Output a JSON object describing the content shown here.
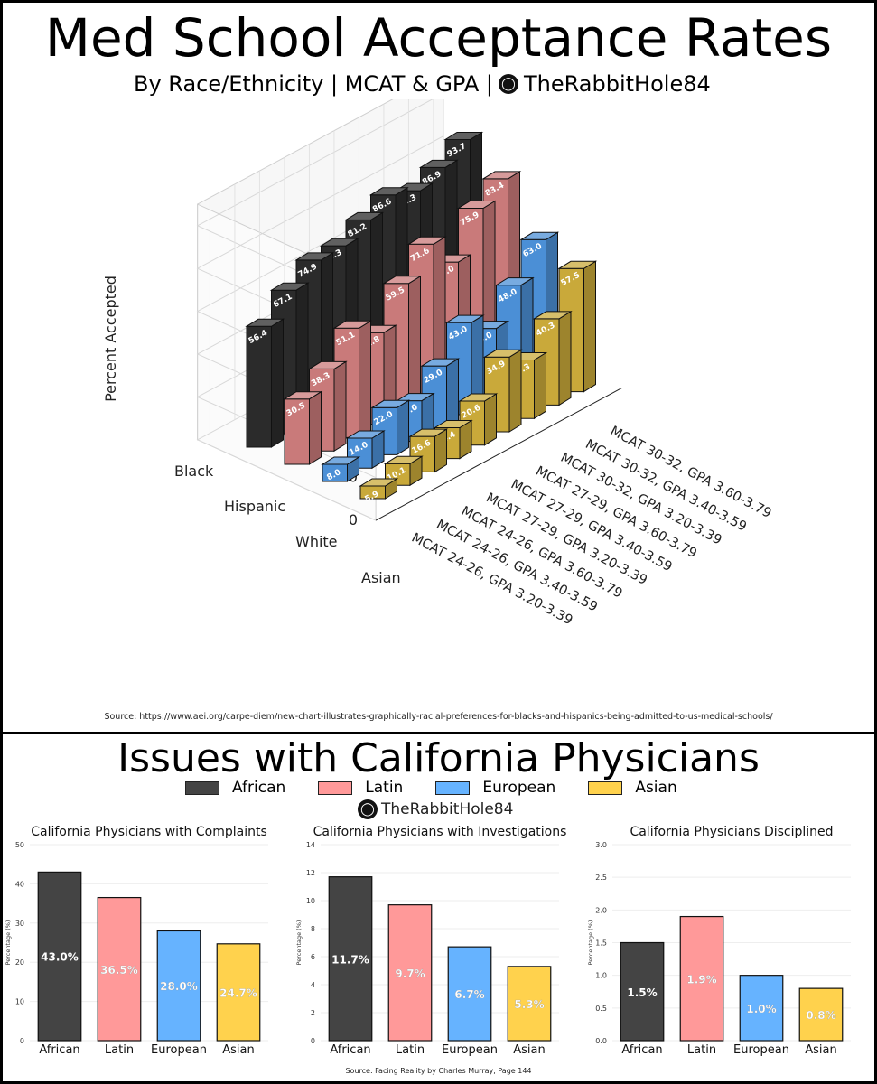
{
  "top": {
    "title": "Med School Acceptance Rates",
    "subtitle": "By Race/Ethnicity | MCAT & GPA |",
    "brand": "TheRabbitHole84",
    "source": "Source: https://www.aei.org/carpe-diem/new-chart-illustrates-graphically-racial-preferences-for-blacks-and-hispanics-being-admitted-to-us-medical-schools/"
  },
  "bottom": {
    "title": "Issues with California Physicians",
    "brand": "TheRabbitHole84",
    "source": "Source: Facing Reality by Charles Murray, Page 144",
    "legend": [
      {
        "label": "African",
        "color": "#444444"
      },
      {
        "label": "Latin",
        "color": "#ff9999"
      },
      {
        "label": "European",
        "color": "#66b3ff"
      },
      {
        "label": "Asian",
        "color": "#ffd24d"
      }
    ]
  },
  "chart_data": [
    {
      "type": "bar",
      "variant": "3d",
      "title": "Med School Acceptance Rates",
      "zlabel": "Percent Accepted",
      "zlim": [
        0,
        100
      ],
      "z_ticks": [
        "0",
        "20",
        "40",
        "60",
        "80",
        "100"
      ],
      "groups": [
        "Black",
        "Hispanic",
        "White",
        "Asian"
      ],
      "group_colors": {
        "Black": "#2b2b2b",
        "Hispanic": "#c97a7a",
        "White": "#4b8fd6",
        "Asian": "#c9a93a"
      },
      "categories": [
        "MCAT 24-26, GPA 3.20-3.39",
        "MCAT 24-26, GPA 3.40-3.59",
        "MCAT 24-26, GPA 3.60-3.79",
        "MCAT 27-29, GPA 3.20-3.39",
        "MCAT 27-29, GPA 3.40-3.59",
        "MCAT 27-29, GPA 3.60-3.79",
        "MCAT 30-32, GPA 3.20-3.39",
        "MCAT 30-32, GPA 3.40-3.59",
        "MCAT 30-32, GPA 3.60-3.79"
      ],
      "series": [
        {
          "name": "Black",
          "values": [
            56.4,
            67.1,
            74.9,
            75.3,
            81.2,
            86.6,
            82.3,
            86.9,
            93.7
          ]
        },
        {
          "name": "Hispanic",
          "values": [
            30.5,
            38.3,
            51.1,
            42.8,
            59.5,
            71.6,
            57.0,
            75.9,
            83.4
          ]
        },
        {
          "name": "White",
          "values": [
            8.0,
            14.0,
            22.0,
            19.0,
            29.0,
            43.0,
            34.0,
            48.0,
            63.0
          ]
        },
        {
          "name": "Asian",
          "values": [
            5.9,
            10.1,
            16.6,
            14.4,
            20.6,
            34.9,
            27.3,
            40.3,
            57.5
          ]
        }
      ],
      "grid": true
    },
    {
      "type": "bar",
      "title": "California Physicians with Complaints",
      "ylabel": "Percentage (%)",
      "categories": [
        "African",
        "Latin",
        "European",
        "Asian"
      ],
      "values": [
        43.0,
        36.5,
        28.0,
        24.7
      ],
      "labels": [
        "43.0%",
        "36.5%",
        "28.0%",
        "24.7%"
      ],
      "ylim": [
        0,
        50
      ],
      "yticks": [
        "0",
        "10",
        "20",
        "30",
        "40",
        "50"
      ]
    },
    {
      "type": "bar",
      "title": "California Physicians with Investigations",
      "ylabel": "Percentage (%)",
      "categories": [
        "African",
        "Latin",
        "European",
        "Asian"
      ],
      "values": [
        11.7,
        9.7,
        6.7,
        5.3
      ],
      "labels": [
        "11.7%",
        "9.7%",
        "6.7%",
        "5.3%"
      ],
      "ylim": [
        0,
        14
      ],
      "yticks": [
        "0",
        "2",
        "4",
        "6",
        "8",
        "10",
        "12",
        "14"
      ]
    },
    {
      "type": "bar",
      "title": "California Physicians Disciplined",
      "ylabel": "Percentage (%)",
      "categories": [
        "African",
        "Latin",
        "European",
        "Asian"
      ],
      "values": [
        1.5,
        1.9,
        1.0,
        0.8
      ],
      "labels": [
        "1.5%",
        "1.9%",
        "1.0%",
        "0.8%"
      ],
      "ylim": [
        0,
        3.0
      ],
      "yticks": [
        "0.0",
        "0.5",
        "1.0",
        "1.5",
        "2.0",
        "2.5",
        "3.0"
      ]
    }
  ]
}
